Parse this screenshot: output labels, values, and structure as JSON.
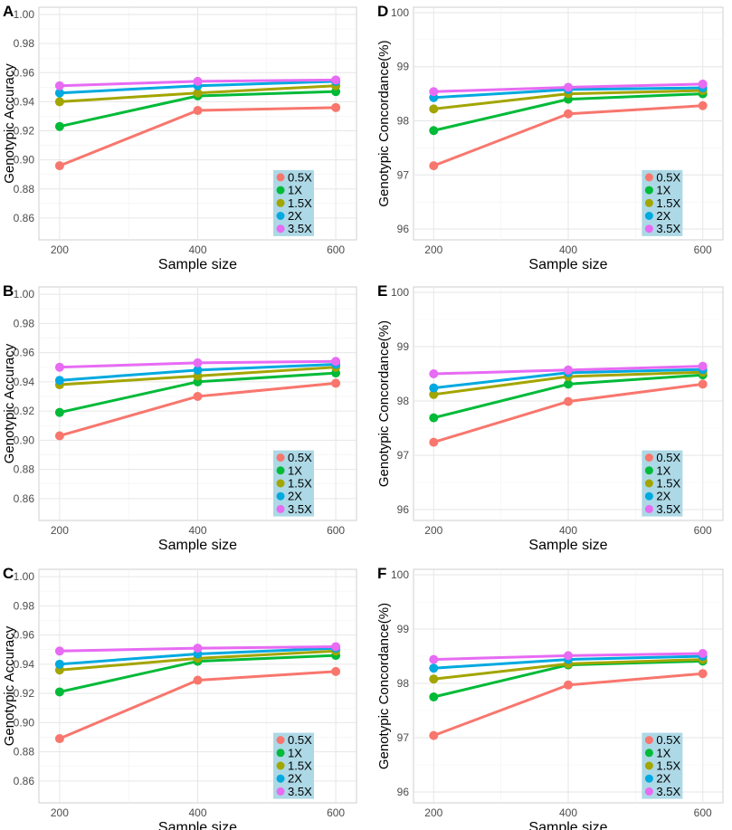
{
  "legend_labels": [
    "0.5X",
    "1X",
    "1.5X",
    "2X",
    "3.5X"
  ],
  "series_colors": [
    "#F8766D",
    "#00BA38",
    "#A3A500",
    "#00A9E0",
    "#E76BF3"
  ],
  "chart_data": [
    {
      "type": "line",
      "panel_label": "A",
      "xlabel": "Sample size",
      "ylabel": "Genotypic Accuracy",
      "x": [
        200,
        400,
        600
      ],
      "x_ticks": [
        "200",
        "400",
        "600"
      ],
      "ylim": [
        0.845,
        1.005
      ],
      "y_ticks": [
        "0.86",
        "0.88",
        "0.90",
        "0.92",
        "0.94",
        "0.96",
        "0.98",
        "1.00"
      ],
      "series": [
        {
          "name": "0.5X",
          "values": [
            0.896,
            0.934,
            0.936
          ]
        },
        {
          "name": "1X",
          "values": [
            0.923,
            0.944,
            0.947
          ]
        },
        {
          "name": "1.5X",
          "values": [
            0.94,
            0.946,
            0.951
          ]
        },
        {
          "name": "2X",
          "values": [
            0.946,
            0.951,
            0.954
          ]
        },
        {
          "name": "3.5X",
          "values": [
            0.951,
            0.954,
            0.955
          ]
        }
      ]
    },
    {
      "type": "line",
      "panel_label": "D",
      "xlabel": "Sample size",
      "ylabel": "Genotypic Concordance(%)",
      "x": [
        200,
        400,
        600
      ],
      "x_ticks": [
        "200",
        "400",
        "600"
      ],
      "ylim": [
        95.8,
        100.1
      ],
      "y_ticks": [
        "96",
        "97",
        "98",
        "99",
        "100"
      ],
      "series": [
        {
          "name": "0.5X",
          "values": [
            97.17,
            98.13,
            98.28
          ]
        },
        {
          "name": "1X",
          "values": [
            97.82,
            98.4,
            98.5
          ]
        },
        {
          "name": "1.5X",
          "values": [
            98.22,
            98.5,
            98.56
          ]
        },
        {
          "name": "2X",
          "values": [
            98.43,
            98.58,
            98.61
          ]
        },
        {
          "name": "3.5X",
          "values": [
            98.54,
            98.62,
            98.68
          ]
        }
      ]
    },
    {
      "type": "line",
      "panel_label": "B",
      "xlabel": "Sample size",
      "ylabel": "Genotypic Accuracy",
      "x": [
        200,
        400,
        600
      ],
      "x_ticks": [
        "200",
        "400",
        "600"
      ],
      "ylim": [
        0.845,
        1.005
      ],
      "y_ticks": [
        "0.86",
        "0.88",
        "0.90",
        "0.92",
        "0.94",
        "0.96",
        "0.98",
        "1.00"
      ],
      "series": [
        {
          "name": "0.5X",
          "values": [
            0.903,
            0.93,
            0.939
          ]
        },
        {
          "name": "1X",
          "values": [
            0.919,
            0.94,
            0.946
          ]
        },
        {
          "name": "1.5X",
          "values": [
            0.938,
            0.944,
            0.95
          ]
        },
        {
          "name": "2X",
          "values": [
            0.941,
            0.948,
            0.952
          ]
        },
        {
          "name": "3.5X",
          "values": [
            0.95,
            0.953,
            0.954
          ]
        }
      ]
    },
    {
      "type": "line",
      "panel_label": "E",
      "xlabel": "Sample size",
      "ylabel": "Genotypic Concordance(%)",
      "x": [
        200,
        400,
        600
      ],
      "x_ticks": [
        "200",
        "400",
        "600"
      ],
      "ylim": [
        95.8,
        100.1
      ],
      "y_ticks": [
        "96",
        "97",
        "98",
        "99",
        "100"
      ],
      "series": [
        {
          "name": "0.5X",
          "values": [
            97.24,
            97.99,
            98.31
          ]
        },
        {
          "name": "1X",
          "values": [
            97.69,
            98.31,
            98.48
          ]
        },
        {
          "name": "1.5X",
          "values": [
            98.12,
            98.45,
            98.53
          ]
        },
        {
          "name": "2X",
          "values": [
            98.24,
            98.52,
            98.58
          ]
        },
        {
          "name": "3.5X",
          "values": [
            98.5,
            98.57,
            98.64
          ]
        }
      ]
    },
    {
      "type": "line",
      "panel_label": "C",
      "xlabel": "Sample size",
      "ylabel": "Genotypic Accuracy",
      "x": [
        200,
        400,
        600
      ],
      "x_ticks": [
        "200",
        "400",
        "600"
      ],
      "ylim": [
        0.845,
        1.005
      ],
      "y_ticks": [
        "0.86",
        "0.88",
        "0.90",
        "0.92",
        "0.94",
        "0.96",
        "0.98",
        "1.00"
      ],
      "series": [
        {
          "name": "0.5X",
          "values": [
            0.889,
            0.929,
            0.935
          ]
        },
        {
          "name": "1X",
          "values": [
            0.921,
            0.942,
            0.946
          ]
        },
        {
          "name": "1.5X",
          "values": [
            0.936,
            0.944,
            0.949
          ]
        },
        {
          "name": "2X",
          "values": [
            0.94,
            0.947,
            0.951
          ]
        },
        {
          "name": "3.5X",
          "values": [
            0.949,
            0.951,
            0.952
          ]
        }
      ]
    },
    {
      "type": "line",
      "panel_label": "F",
      "xlabel": "Sample size",
      "ylabel": "Genotypic Concordance(%)",
      "x": [
        200,
        400,
        600
      ],
      "x_ticks": [
        "200",
        "400",
        "600"
      ],
      "ylim": [
        95.8,
        100.1
      ],
      "y_ticks": [
        "96",
        "97",
        "98",
        "99",
        "100"
      ],
      "series": [
        {
          "name": "0.5X",
          "values": [
            97.04,
            97.97,
            98.18
          ]
        },
        {
          "name": "1X",
          "values": [
            97.75,
            98.34,
            98.41
          ]
        },
        {
          "name": "1.5X",
          "values": [
            98.08,
            98.36,
            98.44
          ]
        },
        {
          "name": "2X",
          "values": [
            98.28,
            98.44,
            98.5
          ]
        },
        {
          "name": "3.5X",
          "values": [
            98.44,
            98.51,
            98.55
          ]
        }
      ]
    }
  ]
}
